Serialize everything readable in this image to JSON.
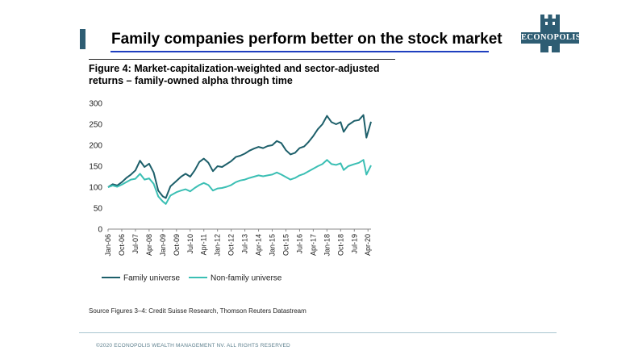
{
  "slide": {
    "title": "Family companies perform better on the stock market",
    "logo_text": "ECONOPOLIS",
    "source": "Source Figures 3–4: Credit Suisse Research, Thomson Reuters Datastream",
    "footer": "©2020 ECONOPOLIS WEALTH MANAGEMENT NV. ALL RIGHTS RESERVED"
  },
  "colors": {
    "brand": "#2e5d73",
    "family": "#1d5f6a",
    "non_family": "#3bbfb4",
    "underline": "#1f3fbf"
  },
  "chart_data": {
    "type": "line",
    "title_lines": [
      "Figure 4: Market-capitalization-weighted and sector-adjusted",
      "returns – family-owned alpha through time"
    ],
    "ylim": [
      0,
      300
    ],
    "yticks": [
      0,
      50,
      100,
      150,
      200,
      250,
      300
    ],
    "x_range": [
      "2006-01",
      "2020-06"
    ],
    "x_ticks": [
      {
        "date": "2006-01",
        "label": "Jan-06"
      },
      {
        "date": "2006-10",
        "label": "Oct-06"
      },
      {
        "date": "2007-07",
        "label": "Jul-07"
      },
      {
        "date": "2008-04",
        "label": "Apr-08"
      },
      {
        "date": "2009-01",
        "label": "Jan-09"
      },
      {
        "date": "2009-10",
        "label": "Oct-09"
      },
      {
        "date": "2010-07",
        "label": "Jul-10"
      },
      {
        "date": "2011-04",
        "label": "Apr-11"
      },
      {
        "date": "2012-01",
        "label": "Jan-12"
      },
      {
        "date": "2012-10",
        "label": "Oct-12"
      },
      {
        "date": "2013-07",
        "label": "Jul-13"
      },
      {
        "date": "2014-04",
        "label": "Apr-14"
      },
      {
        "date": "2015-01",
        "label": "Jan-15"
      },
      {
        "date": "2015-10",
        "label": "Oct-15"
      },
      {
        "date": "2016-07",
        "label": "Jul-16"
      },
      {
        "date": "2017-04",
        "label": "Apr-17"
      },
      {
        "date": "2018-01",
        "label": "Jan-18"
      },
      {
        "date": "2018-10",
        "label": "Oct-18"
      },
      {
        "date": "2019-07",
        "label": "Jul-19"
      },
      {
        "date": "2020-04",
        "label": "Apr-20"
      }
    ],
    "grid": false,
    "legend_position": "bottom-left",
    "series": [
      {
        "name": "Family universe",
        "points": [
          [
            "2006-01",
            100
          ],
          [
            "2006-04",
            107
          ],
          [
            "2006-07",
            104
          ],
          [
            "2006-10",
            112
          ],
          [
            "2007-01",
            122
          ],
          [
            "2007-04",
            130
          ],
          [
            "2007-07",
            140
          ],
          [
            "2007-10",
            163
          ],
          [
            "2008-01",
            148
          ],
          [
            "2008-04",
            156
          ],
          [
            "2008-07",
            135
          ],
          [
            "2008-10",
            92
          ],
          [
            "2009-01",
            78
          ],
          [
            "2009-03",
            74
          ],
          [
            "2009-06",
            102
          ],
          [
            "2009-10",
            115
          ],
          [
            "2010-01",
            125
          ],
          [
            "2010-04",
            132
          ],
          [
            "2010-07",
            125
          ],
          [
            "2010-10",
            140
          ],
          [
            "2011-01",
            160
          ],
          [
            "2011-04",
            168
          ],
          [
            "2011-07",
            158
          ],
          [
            "2011-10",
            138
          ],
          [
            "2012-01",
            150
          ],
          [
            "2012-04",
            148
          ],
          [
            "2012-07",
            155
          ],
          [
            "2012-10",
            162
          ],
          [
            "2013-01",
            172
          ],
          [
            "2013-04",
            175
          ],
          [
            "2013-07",
            180
          ],
          [
            "2013-10",
            187
          ],
          [
            "2014-01",
            192
          ],
          [
            "2014-04",
            196
          ],
          [
            "2014-07",
            193
          ],
          [
            "2014-10",
            198
          ],
          [
            "2015-01",
            200
          ],
          [
            "2015-04",
            210
          ],
          [
            "2015-07",
            205
          ],
          [
            "2015-10",
            188
          ],
          [
            "2016-01",
            178
          ],
          [
            "2016-04",
            182
          ],
          [
            "2016-07",
            193
          ],
          [
            "2016-10",
            197
          ],
          [
            "2017-01",
            208
          ],
          [
            "2017-04",
            222
          ],
          [
            "2017-07",
            238
          ],
          [
            "2017-10",
            250
          ],
          [
            "2018-01",
            270
          ],
          [
            "2018-04",
            255
          ],
          [
            "2018-07",
            250
          ],
          [
            "2018-10",
            255
          ],
          [
            "2018-12",
            232
          ],
          [
            "2019-03",
            248
          ],
          [
            "2019-07",
            258
          ],
          [
            "2019-10",
            260
          ],
          [
            "2020-01",
            272
          ],
          [
            "2020-03",
            218
          ],
          [
            "2020-06",
            256
          ]
        ]
      },
      {
        "name": "Non-family universe",
        "points": [
          [
            "2006-01",
            100
          ],
          [
            "2006-04",
            104
          ],
          [
            "2006-07",
            101
          ],
          [
            "2006-10",
            106
          ],
          [
            "2007-01",
            112
          ],
          [
            "2007-04",
            118
          ],
          [
            "2007-07",
            120
          ],
          [
            "2007-10",
            132
          ],
          [
            "2008-01",
            118
          ],
          [
            "2008-04",
            121
          ],
          [
            "2008-07",
            108
          ],
          [
            "2008-10",
            78
          ],
          [
            "2009-01",
            66
          ],
          [
            "2009-03",
            60
          ],
          [
            "2009-06",
            80
          ],
          [
            "2009-10",
            88
          ],
          [
            "2010-01",
            92
          ],
          [
            "2010-04",
            95
          ],
          [
            "2010-07",
            90
          ],
          [
            "2010-10",
            98
          ],
          [
            "2011-01",
            105
          ],
          [
            "2011-04",
            110
          ],
          [
            "2011-07",
            105
          ],
          [
            "2011-10",
            92
          ],
          [
            "2012-01",
            97
          ],
          [
            "2012-04",
            98
          ],
          [
            "2012-07",
            101
          ],
          [
            "2012-10",
            105
          ],
          [
            "2013-01",
            112
          ],
          [
            "2013-04",
            116
          ],
          [
            "2013-07",
            118
          ],
          [
            "2013-10",
            122
          ],
          [
            "2014-01",
            125
          ],
          [
            "2014-04",
            128
          ],
          [
            "2014-07",
            126
          ],
          [
            "2014-10",
            128
          ],
          [
            "2015-01",
            130
          ],
          [
            "2015-04",
            135
          ],
          [
            "2015-07",
            130
          ],
          [
            "2015-10",
            124
          ],
          [
            "2016-01",
            118
          ],
          [
            "2016-04",
            122
          ],
          [
            "2016-07",
            128
          ],
          [
            "2016-10",
            132
          ],
          [
            "2017-01",
            138
          ],
          [
            "2017-04",
            144
          ],
          [
            "2017-07",
            150
          ],
          [
            "2017-10",
            155
          ],
          [
            "2018-01",
            165
          ],
          [
            "2018-04",
            155
          ],
          [
            "2018-07",
            153
          ],
          [
            "2018-10",
            157
          ],
          [
            "2018-12",
            141
          ],
          [
            "2019-03",
            150
          ],
          [
            "2019-07",
            155
          ],
          [
            "2019-10",
            158
          ],
          [
            "2020-01",
            165
          ],
          [
            "2020-03",
            130
          ],
          [
            "2020-06",
            152
          ]
        ]
      }
    ]
  }
}
